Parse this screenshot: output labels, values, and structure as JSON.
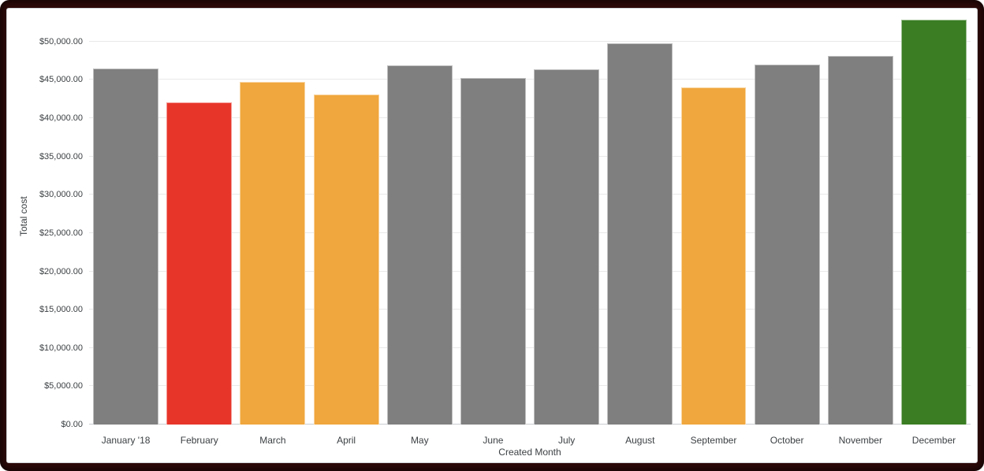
{
  "page": {
    "border_color": "#2e0909",
    "panel_bg": "#ffffff"
  },
  "chart_data": {
    "type": "bar",
    "title": "",
    "xlabel": "Created Month",
    "ylabel": "Total cost",
    "categories": [
      "January '18",
      "February",
      "March",
      "April",
      "May",
      "June",
      "July",
      "August",
      "September",
      "October",
      "November",
      "December"
    ],
    "values": [
      46500,
      42100,
      44700,
      43100,
      46900,
      45300,
      46400,
      49800,
      44000,
      47000,
      48100,
      52900
    ],
    "bar_colors": [
      "#7f7f7f",
      "#e8352a",
      "#f0a73d",
      "#f0a73d",
      "#7f7f7f",
      "#7f7f7f",
      "#7f7f7f",
      "#7f7f7f",
      "#f0a73d",
      "#7f7f7f",
      "#7f7f7f",
      "#3a7d23"
    ],
    "default_bar_color": "#7f7f7f",
    "highlight_colors": {
      "red": "#e8352a",
      "orange": "#f0a73d",
      "green": "#3a7d23"
    },
    "y_tick_values": [
      0,
      5000,
      10000,
      15000,
      20000,
      25000,
      30000,
      35000,
      40000,
      45000,
      50000
    ],
    "y_tick_labels": [
      "$0.00",
      "$5,000.00",
      "$10,000.00",
      "$15,000.00",
      "$20,000.00",
      "$25,000.00",
      "$30,000.00",
      "$35,000.00",
      "$40,000.00",
      "$45,000.00",
      "$50,000.00"
    ],
    "ylim": [
      0,
      54300
    ],
    "grid": true,
    "legend": "none"
  }
}
